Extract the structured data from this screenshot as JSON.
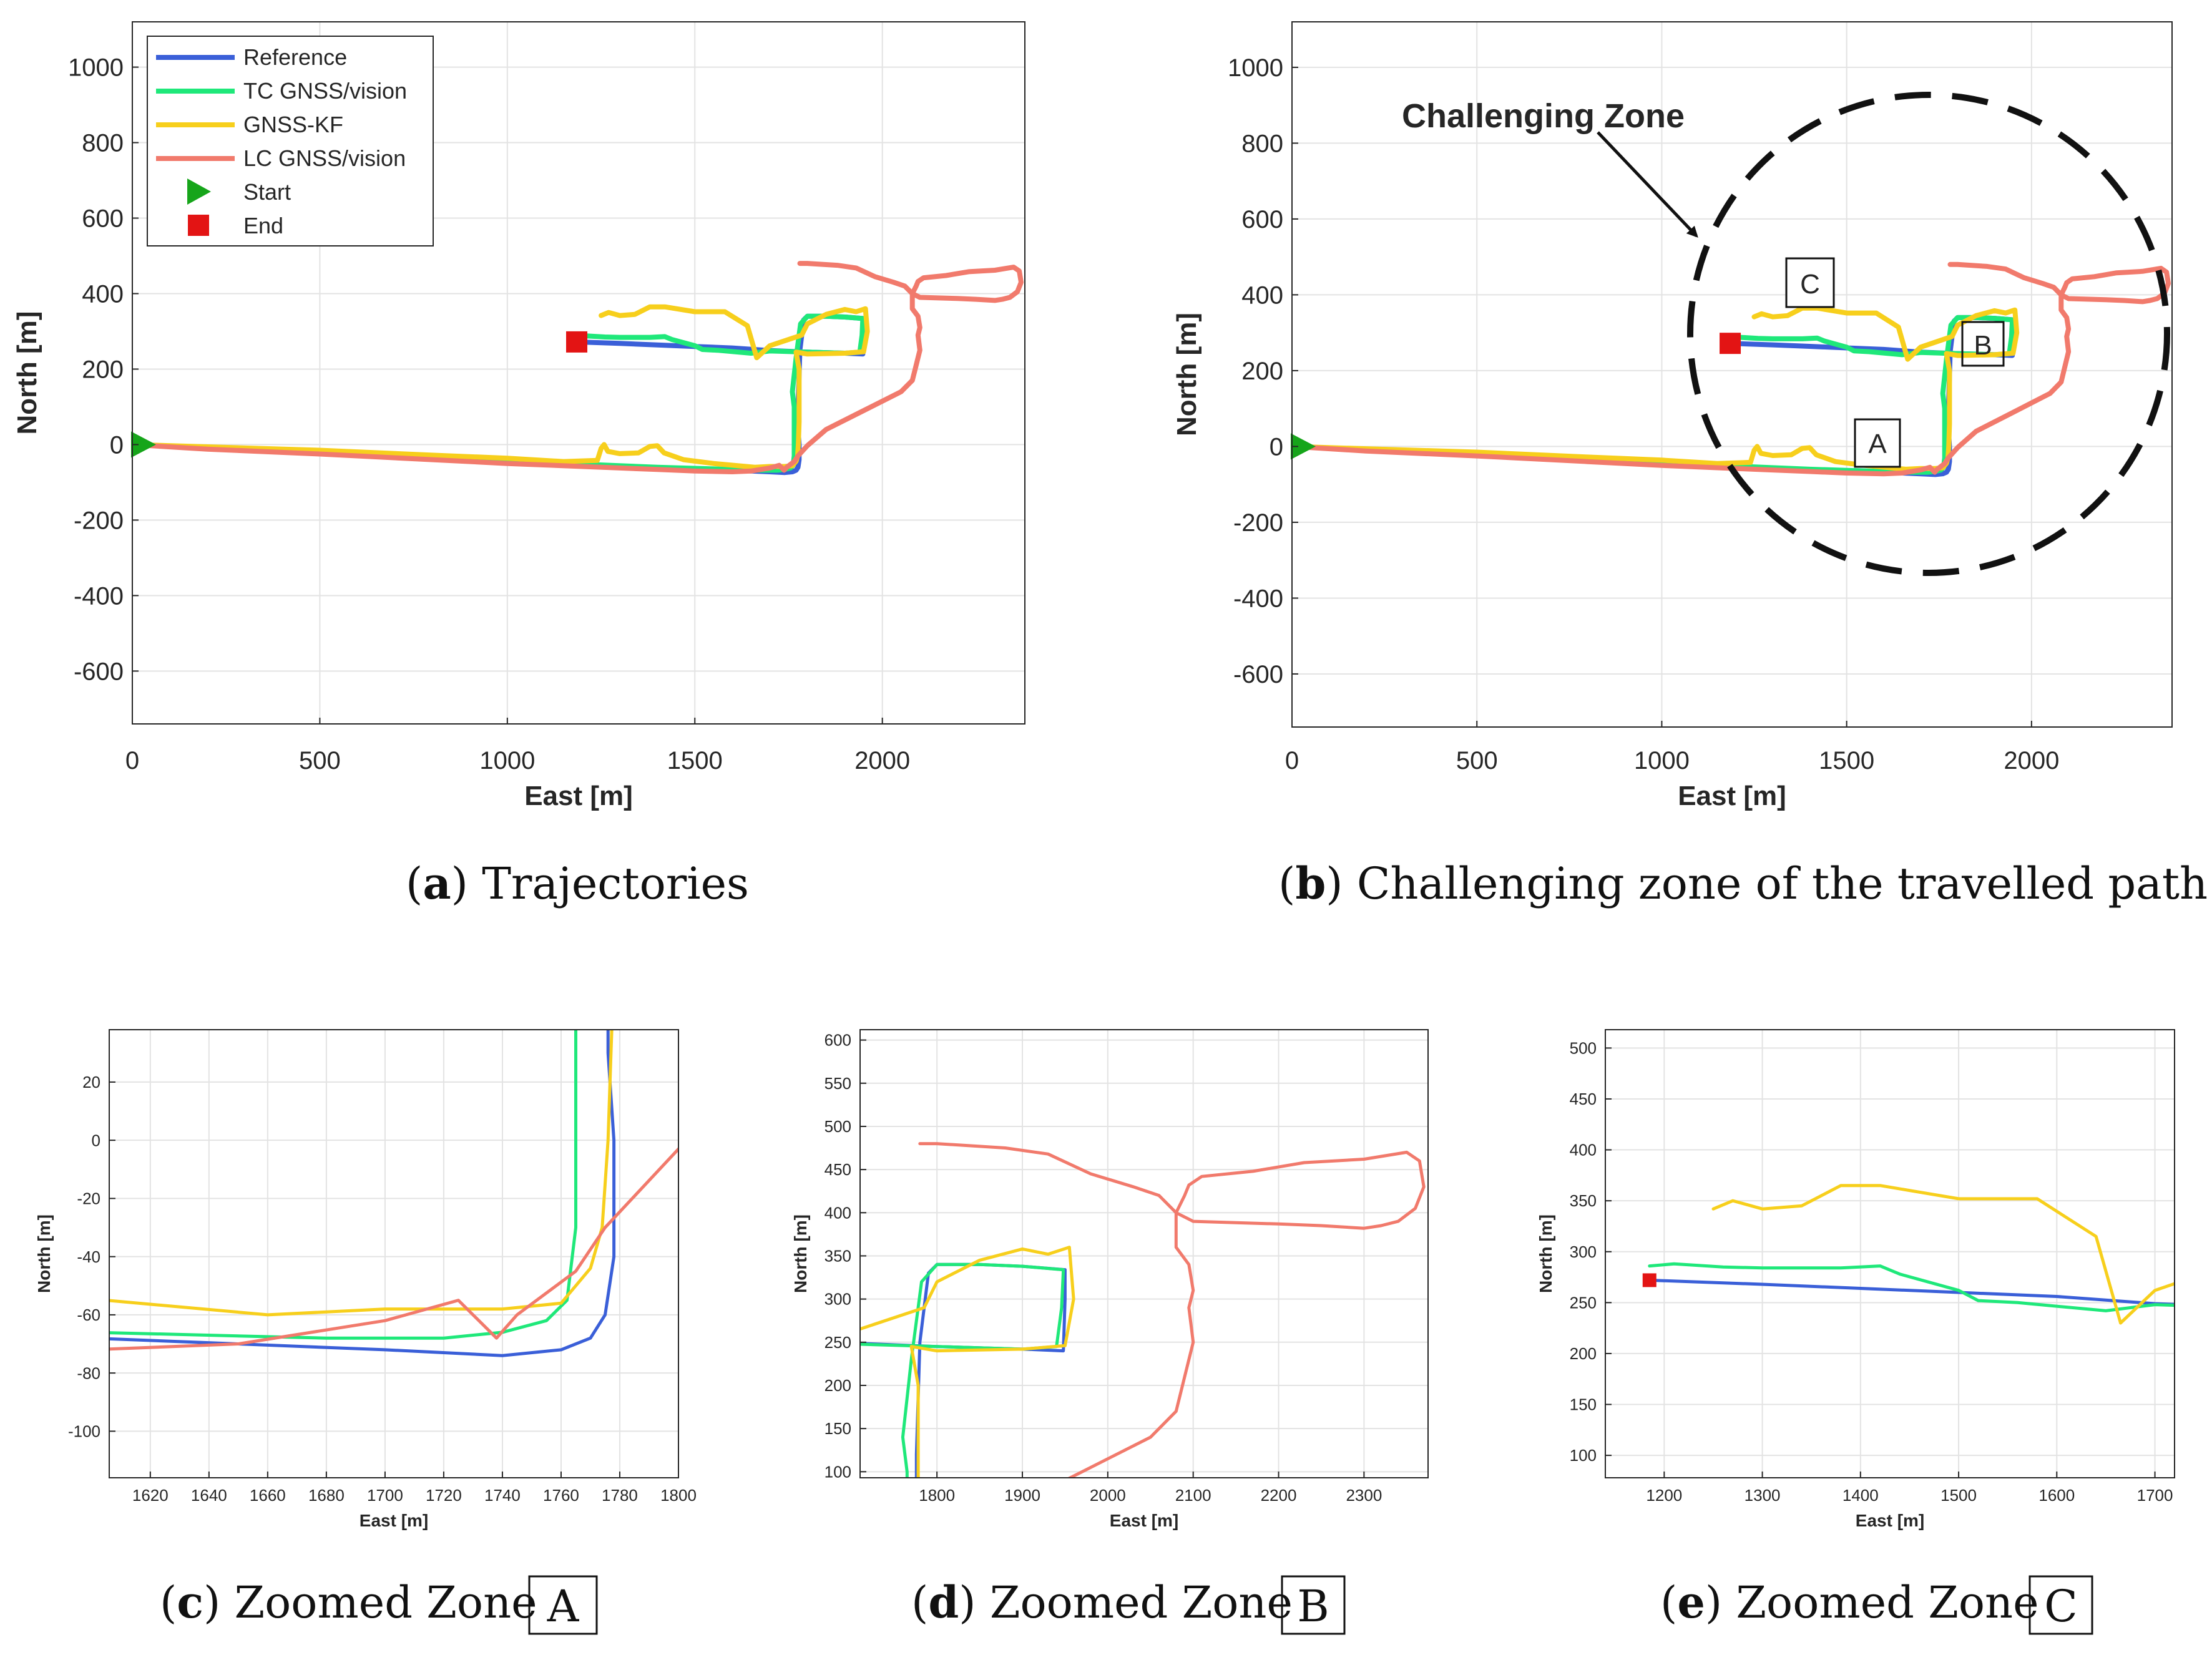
{
  "colors": {
    "reference": "#3a5fd8",
    "tc": "#1fe87a",
    "gnss": "#f7cf1c",
    "lc": "#f17a6c",
    "start": "#16a51a",
    "end": "#e31414"
  },
  "captions": [
    {
      "letter": "a",
      "text": "Trajectories",
      "box": ""
    },
    {
      "letter": "b",
      "text": "Challenging zone of the travelled path",
      "box": ""
    },
    {
      "letter": "c",
      "text": "Zoomed Zone",
      "box": "A"
    },
    {
      "letter": "d",
      "text": "Zoomed Zone",
      "box": "B"
    },
    {
      "letter": "e",
      "text": "Zoomed Zone",
      "box": "C"
    }
  ],
  "annotation": {
    "challenging_zone": "Challenging Zone",
    "zone_a": "A",
    "zone_b": "B",
    "zone_c": "C"
  },
  "chart_data": [
    {
      "id": "a",
      "type": "line",
      "title": "",
      "xlabel": "East [m]",
      "ylabel": "North [m]",
      "xlim": [
        0,
        2380
      ],
      "ylim": [
        -740,
        1120
      ],
      "xticks": [
        0,
        500,
        1000,
        1500,
        2000
      ],
      "yticks": [
        -600,
        -400,
        -200,
        0,
        200,
        400,
        600,
        800,
        1000
      ],
      "grid": true,
      "legend": "top-left",
      "legend_entries": [
        "Reference",
        "TC GNSS/vision",
        "GNSS-KF",
        "LC GNSS/vision",
        "Start",
        "End"
      ],
      "start": [
        0,
        0
      ],
      "end": [
        1185,
        272
      ]
    },
    {
      "id": "b",
      "type": "line",
      "title": "",
      "xlabel": "East [m]",
      "ylabel": "North [m]",
      "xlim": [
        0,
        2380
      ],
      "ylim": [
        -740,
        1120
      ],
      "xticks": [
        0,
        500,
        1000,
        1500,
        2000
      ],
      "yticks": [
        -600,
        -400,
        -200,
        0,
        200,
        400,
        600,
        800,
        1000
      ],
      "grid": true,
      "legend": "none",
      "start": [
        0,
        0
      ],
      "end": [
        1185,
        272
      ]
    },
    {
      "id": "c",
      "type": "line",
      "title": "",
      "xlabel": "East [m]",
      "ylabel": "North [m]",
      "xlim": [
        1606,
        1800
      ],
      "ylim": [
        -116,
        38
      ],
      "xticks": [
        1620,
        1640,
        1660,
        1680,
        1700,
        1720,
        1740,
        1760,
        1780,
        1800
      ],
      "yticks": [
        -100,
        -80,
        -60,
        -40,
        -20,
        0,
        20
      ],
      "grid": true
    },
    {
      "id": "d",
      "type": "line",
      "title": "",
      "xlabel": "East [m]",
      "ylabel": "North [m]",
      "xlim": [
        1710,
        2375
      ],
      "ylim": [
        93,
        612
      ],
      "xticks": [
        1800,
        1900,
        2000,
        2100,
        2200,
        2300
      ],
      "yticks": [
        100,
        150,
        200,
        250,
        300,
        350,
        400,
        450,
        500,
        550,
        600
      ],
      "grid": true
    },
    {
      "id": "e",
      "type": "line",
      "title": "",
      "xlabel": "East [m]",
      "ylabel": "North [m]",
      "xlim": [
        1140,
        1720
      ],
      "ylim": [
        78,
        518
      ],
      "xticks": [
        1200,
        1300,
        1400,
        1500,
        1600,
        1700
      ],
      "yticks": [
        100,
        150,
        200,
        250,
        300,
        350,
        400,
        450,
        500
      ],
      "grid": true,
      "end": [
        1185,
        272
      ]
    }
  ],
  "series": [
    {
      "name": "Reference",
      "color_key": "reference",
      "points": [
        [
          0,
          0
        ],
        [
          200,
          -10
        ],
        [
          500,
          -20
        ],
        [
          800,
          -35
        ],
        [
          1000,
          -45
        ],
        [
          1200,
          -55
        ],
        [
          1400,
          -62
        ],
        [
          1600,
          -68
        ],
        [
          1700,
          -72
        ],
        [
          1740,
          -74
        ],
        [
          1760,
          -72
        ],
        [
          1770,
          -68
        ],
        [
          1775,
          -60
        ],
        [
          1778,
          -40
        ],
        [
          1778,
          0
        ],
        [
          1776,
          30
        ],
        [
          1776,
          120
        ],
        [
          1780,
          250
        ],
        [
          1790,
          330
        ],
        [
          1800,
          340
        ],
        [
          1850,
          340
        ],
        [
          1900,
          338
        ],
        [
          1950,
          334
        ],
        [
          1950,
          300
        ],
        [
          1948,
          240
        ],
        [
          1900,
          242
        ],
        [
          1800,
          245
        ],
        [
          1700,
          249
        ],
        [
          1600,
          256
        ],
        [
          1500,
          260
        ],
        [
          1400,
          264
        ],
        [
          1300,
          268
        ],
        [
          1185,
          272
        ]
      ]
    },
    {
      "name": "TC GNSS/vision",
      "color_key": "tc",
      "points": [
        [
          0,
          0
        ],
        [
          200,
          -8
        ],
        [
          500,
          -18
        ],
        [
          800,
          -32
        ],
        [
          1000,
          -42
        ],
        [
          1200,
          -52
        ],
        [
          1400,
          -60
        ],
        [
          1500,
          -63
        ],
        [
          1600,
          -66
        ],
        [
          1680,
          -68
        ],
        [
          1720,
          -68
        ],
        [
          1740,
          -66
        ],
        [
          1755,
          -62
        ],
        [
          1762,
          -55
        ],
        [
          1765,
          -30
        ],
        [
          1765,
          20
        ],
        [
          1765,
          60
        ],
        [
          1765,
          100
        ],
        [
          1760,
          140
        ],
        [
          1770,
          230
        ],
        [
          1782,
          320
        ],
        [
          1800,
          340
        ],
        [
          1850,
          340
        ],
        [
          1900,
          338
        ],
        [
          1948,
          334
        ],
        [
          1946,
          290
        ],
        [
          1940,
          245
        ],
        [
          1900,
          242
        ],
        [
          1800,
          245
        ],
        [
          1700,
          248
        ],
        [
          1650,
          242
        ],
        [
          1560,
          250
        ],
        [
          1520,
          252
        ],
        [
          1500,
          262
        ],
        [
          1440,
          278
        ],
        [
          1420,
          286
        ],
        [
          1380,
          284
        ],
        [
          1300,
          284
        ],
        [
          1260,
          285
        ],
        [
          1210,
          288
        ],
        [
          1185,
          286
        ]
      ]
    },
    {
      "name": "GNSS-KF",
      "color_key": "gnss",
      "points": [
        [
          0,
          0
        ],
        [
          200,
          -6
        ],
        [
          500,
          -15
        ],
        [
          800,
          -28
        ],
        [
          1000,
          -36
        ],
        [
          1150,
          -45
        ],
        [
          1240,
          -42
        ],
        [
          1250,
          -10
        ],
        [
          1258,
          0
        ],
        [
          1268,
          -18
        ],
        [
          1300,
          -24
        ],
        [
          1350,
          -22
        ],
        [
          1380,
          -5
        ],
        [
          1400,
          -3
        ],
        [
          1418,
          -22
        ],
        [
          1470,
          -40
        ],
        [
          1550,
          -50
        ],
        [
          1660,
          -60
        ],
        [
          1700,
          -58
        ],
        [
          1740,
          -58
        ],
        [
          1760,
          -56
        ],
        [
          1770,
          -44
        ],
        [
          1774,
          -30
        ],
        [
          1776,
          0
        ],
        [
          1778,
          60
        ],
        [
          1778,
          200
        ],
        [
          1770,
          245
        ],
        [
          1800,
          240
        ],
        [
          1900,
          242
        ],
        [
          1950,
          246
        ],
        [
          1960,
          300
        ],
        [
          1955,
          360
        ],
        [
          1930,
          352
        ],
        [
          1900,
          358
        ],
        [
          1850,
          345
        ],
        [
          1800,
          320
        ],
        [
          1785,
          290
        ],
        [
          1700,
          262
        ],
        [
          1665,
          230
        ],
        [
          1640,
          315
        ],
        [
          1580,
          352
        ],
        [
          1500,
          352
        ],
        [
          1420,
          365
        ],
        [
          1380,
          365
        ],
        [
          1340,
          345
        ],
        [
          1300,
          342
        ],
        [
          1270,
          350
        ],
        [
          1250,
          342
        ]
      ]
    },
    {
      "name": "LC GNSS/vision",
      "color_key": "lc",
      "points": [
        [
          0,
          0
        ],
        [
          200,
          -12
        ],
        [
          500,
          -25
        ],
        [
          800,
          -40
        ],
        [
          1000,
          -50
        ],
        [
          1200,
          -58
        ],
        [
          1300,
          -62
        ],
        [
          1400,
          -66
        ],
        [
          1500,
          -70
        ],
        [
          1600,
          -72
        ],
        [
          1650,
          -70
        ],
        [
          1700,
          -62
        ],
        [
          1725,
          -55
        ],
        [
          1738,
          -68
        ],
        [
          1745,
          -60
        ],
        [
          1765,
          -45
        ],
        [
          1775,
          -30
        ],
        [
          1800,
          -3
        ],
        [
          1850,
          40
        ],
        [
          1950,
          90
        ],
        [
          2050,
          140
        ],
        [
          2080,
          170
        ],
        [
          2090,
          210
        ],
        [
          2100,
          250
        ],
        [
          2095,
          290
        ],
        [
          2100,
          310
        ],
        [
          2095,
          340
        ],
        [
          2080,
          360
        ],
        [
          2080,
          400
        ],
        [
          2090,
          420
        ],
        [
          2095,
          432
        ],
        [
          2110,
          442
        ],
        [
          2170,
          448
        ],
        [
          2230,
          458
        ],
        [
          2300,
          462
        ],
        [
          2350,
          470
        ],
        [
          2365,
          460
        ],
        [
          2370,
          430
        ],
        [
          2360,
          405
        ],
        [
          2340,
          390
        ],
        [
          2320,
          385
        ],
        [
          2300,
          382
        ],
        [
          2250,
          385
        ],
        [
          2200,
          387
        ],
        [
          2100,
          390
        ],
        [
          2080,
          400
        ],
        [
          2060,
          420
        ],
        [
          2030,
          430
        ],
        [
          1980,
          445
        ],
        [
          1930,
          468
        ],
        [
          1880,
          475
        ],
        [
          1800,
          480
        ],
        [
          1780,
          480
        ]
      ]
    }
  ]
}
